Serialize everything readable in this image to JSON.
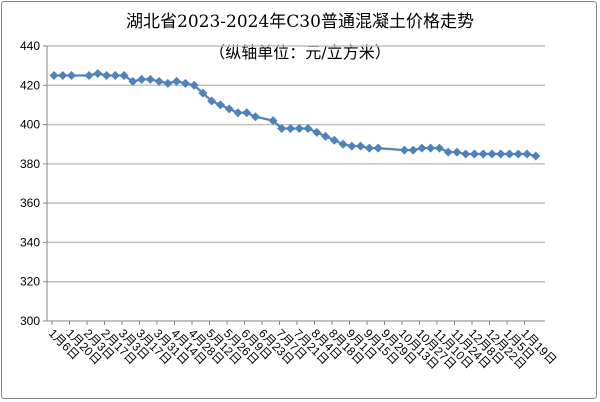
{
  "chart_data": {
    "type": "line",
    "title": "湖北省2023-2024年C30普通混凝土价格走势",
    "subtitle": "（纵轴单位：元/立方米）",
    "xlabel": "",
    "ylabel": "",
    "ylim": [
      300,
      440
    ],
    "yticks": [
      300,
      320,
      340,
      360,
      380,
      400,
      420,
      440
    ],
    "xtick_labels": [
      "1月6日",
      "1月20日",
      "2月3日",
      "2月17日",
      "3月3日",
      "3月17日",
      "3月31日",
      "4月14日",
      "4月28日",
      "5月12日",
      "5月26日",
      "6月9日",
      "6月23日",
      "7月7日",
      "7月21日",
      "8月4日",
      "8月18日",
      "9月1日",
      "9月15日",
      "9月29日",
      "10月13日",
      "10月27日",
      "11月10日",
      "11月24日",
      "12月8日",
      "12月22日",
      "1月5日",
      "1月19日"
    ],
    "grid": true,
    "legend": "none",
    "series": [
      {
        "color": "#4f81bd",
        "marker": "diamond",
        "values": [
          425,
          425,
          425,
          null,
          425,
          426,
          425,
          425,
          425,
          422,
          423,
          423,
          422,
          421,
          422,
          421,
          420,
          416,
          412,
          410,
          408,
          406,
          406,
          404,
          null,
          402,
          398,
          398,
          398,
          398,
          396,
          394,
          392,
          390,
          389,
          389,
          388,
          388,
          null,
          null,
          387,
          387,
          388,
          388,
          388,
          386,
          386,
          385,
          385,
          385,
          385,
          385,
          385,
          385,
          385,
          384
        ]
      }
    ]
  }
}
